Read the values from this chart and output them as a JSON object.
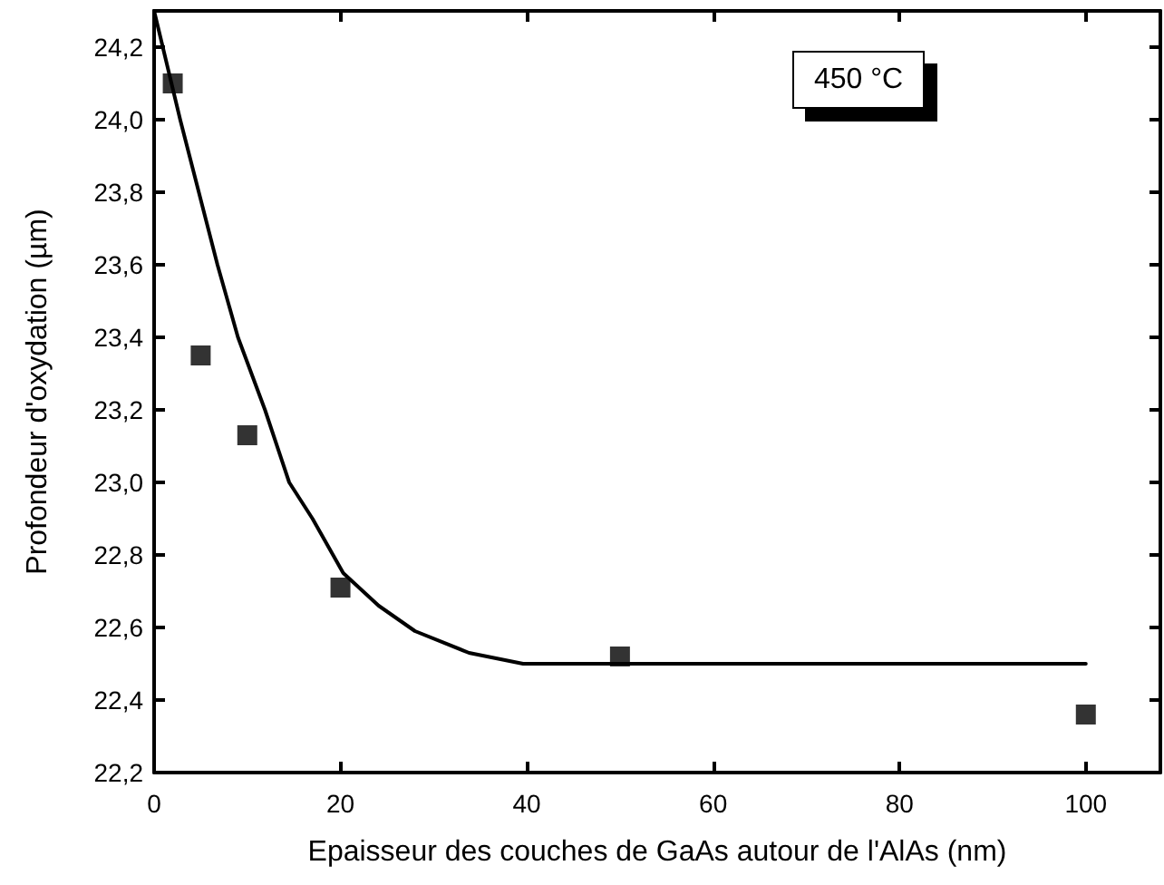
{
  "chart_data": {
    "type": "scatter",
    "xlabel": "Epaisseur des couches de GaAs autour de l'AlAs (nm)",
    "ylabel": "Profondeur d'oxydation (µm)",
    "annotations": [
      "450 °C"
    ],
    "xlim": [
      0,
      108
    ],
    "xticks": [
      0,
      20,
      40,
      60,
      80,
      100
    ],
    "ylim": [
      22.2,
      24.3
    ],
    "yticks": [
      {
        "value": 22.2,
        "label": "22,2"
      },
      {
        "value": 22.4,
        "label": "22,4"
      },
      {
        "value": 22.6,
        "label": "22,6"
      },
      {
        "value": 22.8,
        "label": "22,8"
      },
      {
        "value": 23.0,
        "label": "23,0"
      },
      {
        "value": 23.2,
        "label": "23,2"
      },
      {
        "value": 23.4,
        "label": "23,4"
      },
      {
        "value": 23.6,
        "label": "23,6"
      },
      {
        "value": 23.8,
        "label": "23,8"
      },
      {
        "value": 24.0,
        "label": "24,0"
      },
      {
        "value": 24.2,
        "label": "24,2"
      }
    ],
    "series": [
      {
        "color": "#000000",
        "marker": "square",
        "x": [
          2,
          5,
          10,
          20,
          50,
          100
        ],
        "values": [
          24.1,
          23.35,
          23.13,
          22.71,
          22.52,
          22.36
        ]
      },
      {
        "type": "line",
        "color": "#000000",
        "marker": "none",
        "line_style": "solid",
        "x": [
          0,
          2.8,
          6.8,
          9,
          11.9,
          14.5,
          17,
          20.3,
          24.1,
          28,
          33.8,
          39.6,
          50,
          100
        ],
        "values": [
          24.3,
          24.0,
          23.6,
          23.4,
          23.2,
          23.0,
          22.9,
          22.75,
          22.66,
          22.59,
          22.53,
          22.5,
          22.5,
          22.5
        ]
      }
    ]
  }
}
